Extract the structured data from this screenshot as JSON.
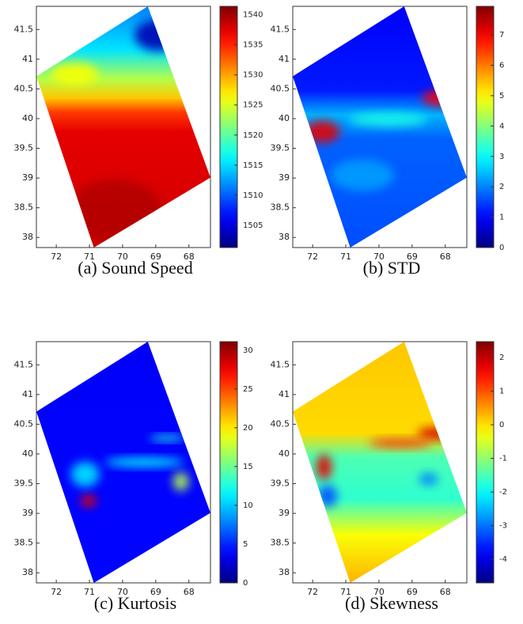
{
  "chart_data": [
    {
      "type": "heatmap",
      "caption": "(a) Sound Speed",
      "colormap": "jet",
      "xlim": [
        72.6,
        67.35
      ],
      "xticks": [
        72,
        71,
        70,
        69,
        68
      ],
      "ylim": [
        37.83,
        41.89
      ],
      "yticks": [
        38,
        38.5,
        39,
        39.5,
        40,
        40.5,
        41,
        41.5
      ],
      "clim": [
        1501.3,
        1541.4
      ],
      "cticks": [
        1505,
        1510,
        1515,
        1520,
        1525,
        1530,
        1535,
        1540
      ]
    },
    {
      "type": "heatmap",
      "caption": "(b) STD",
      "colormap": "jet",
      "xlim": [
        72.6,
        67.35
      ],
      "xticks": [
        72,
        71,
        70,
        69,
        68
      ],
      "ylim": [
        37.83,
        41.89
      ],
      "yticks": [
        38,
        38.5,
        39,
        39.5,
        40,
        40.5,
        41,
        41.5
      ],
      "clim": [
        0,
        7.94
      ],
      "cticks": [
        0,
        1,
        2,
        3,
        4,
        5,
        6,
        7
      ]
    },
    {
      "type": "heatmap",
      "caption": "(c) Kurtosis",
      "colormap": "jet",
      "xlim": [
        72.6,
        67.35
      ],
      "xticks": [
        72,
        71,
        70,
        69,
        68
      ],
      "ylim": [
        37.83,
        41.89
      ],
      "yticks": [
        38,
        38.5,
        39,
        39.5,
        40,
        40.5,
        41,
        41.5
      ],
      "clim": [
        0,
        31.1
      ],
      "cticks": [
        0,
        5,
        10,
        15,
        20,
        25,
        30
      ]
    },
    {
      "type": "heatmap",
      "caption": "(d) Skewness",
      "colormap": "jet",
      "xlim": [
        72.6,
        67.35
      ],
      "xticks": [
        72,
        71,
        70,
        69,
        68
      ],
      "ylim": [
        37.83,
        41.89
      ],
      "yticks": [
        38,
        38.5,
        39,
        39.5,
        40,
        40.5,
        41,
        41.5
      ],
      "clim": [
        -4.7,
        2.47
      ],
      "cticks": [
        -4,
        -3,
        -2,
        -1,
        0,
        1,
        2
      ]
    }
  ]
}
